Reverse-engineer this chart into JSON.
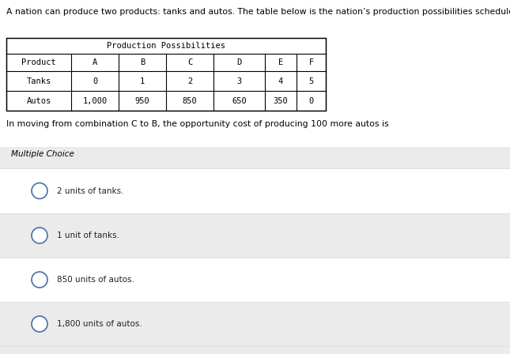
{
  "intro_text": "A nation can produce two products: tanks and autos. The table below is the nation’s production possibilities schedule.",
  "table_title": "Production Possibilities",
  "table_headers": [
    "Product",
    "A",
    "B",
    "C",
    "D",
    "E",
    "F"
  ],
  "table_row1_label": "Tanks",
  "table_row1_values": [
    "0",
    "1",
    "2",
    "3",
    "4",
    "5"
  ],
  "table_row2_label": "Autos",
  "table_row2_values": [
    "1,000",
    "950",
    "850",
    "650",
    "350",
    "0"
  ],
  "question_text": "In moving from combination C to B, the opportunity cost of producing 100 more autos is",
  "section_label": "Multiple Choice",
  "choices": [
    "2 units of tanks.",
    "1 unit of tanks.",
    "850 units of autos.",
    "1,800 units of autos."
  ],
  "bg_color": "#ffffff",
  "mc_bg_color": "#ebebeb",
  "choice_bg_color": "#ffffff",
  "choice_sep_color": "#e0e0e0",
  "text_color": "#000000",
  "choice_text_color": "#222222",
  "circle_color": "#4a6fa5",
  "intro_fontsize": 7.8,
  "question_fontsize": 7.8,
  "table_fontsize": 7.5,
  "choice_fontsize": 7.5,
  "mc_fontsize": 7.5
}
